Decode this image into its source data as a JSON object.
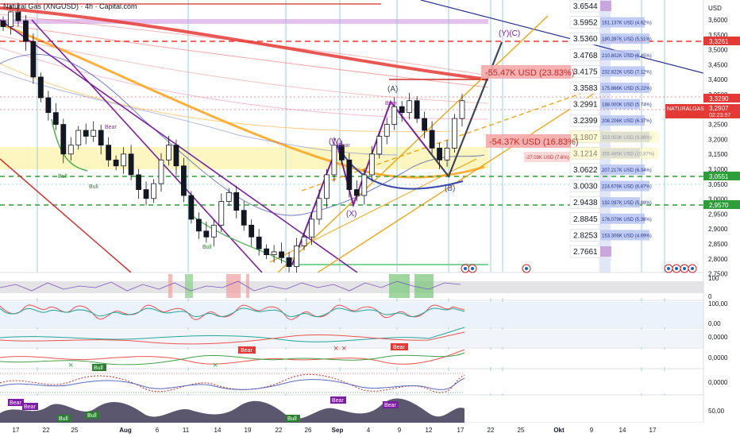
{
  "header": {
    "title": "Natural Gas (XNGUSD) · 4h · Capital.com"
  },
  "axis": {
    "currency": "USD",
    "price_ticks": [
      "3,6000",
      "3,5500",
      "3,5000",
      "3,4500",
      "3,4000",
      "3,3500",
      "3,3000",
      "3,2500",
      "3,2000",
      "3,1500",
      "3,1000",
      "3,0500",
      "3,0000",
      "2,9500",
      "2,9000",
      "2,8500",
      "2,8000",
      "2,7500"
    ],
    "time_ticks": [
      "17",
      "22",
      "25",
      "Aug",
      "6",
      "11",
      "14",
      "19",
      "22",
      "26",
      "Sep",
      "4",
      "9",
      "12",
      "17",
      "22",
      "25",
      "Okt",
      "9",
      "14",
      "17"
    ],
    "indicator_ticks": [
      [
        "100",
        "0"
      ],
      [
        "100,00",
        "0,00"
      ],
      [
        "0,0000"
      ],
      [
        "0,0000"
      ],
      [
        "0,0000"
      ],
      [
        "50,00"
      ]
    ]
  },
  "price_badges": {
    "level_3_3290": "3,3290",
    "symbol": "NATURALGAS",
    "last_price": "3,2907",
    "countdown": "02:23:57",
    "level_3_3261": "3,3261",
    "level_3_0551": "3,0551",
    "level_2_9570": "2,9570"
  },
  "levels": [
    {
      "price": "3.6544",
      "note": ""
    },
    {
      "price": "3.5952",
      "note": "161.137K USD (4.62%)"
    },
    {
      "price": "3.5360",
      "note": "180.397K USD (5.51%)"
    },
    {
      "price": "3.4768",
      "note": "210.802K USD (6.45%)"
    },
    {
      "price": "3.4175",
      "note": "232.822K USD (7.12%)"
    },
    {
      "price": "3.3583",
      "note": "175.866K USD (5.22%)"
    },
    {
      "price": "3.2991",
      "note": "188.000K USD (5.74%)"
    },
    {
      "price": "3.2399",
      "note": "208.206K USD (6.37%)"
    },
    {
      "price": "3.1807",
      "note": "323.053K USD (9.88%)"
    },
    {
      "price": "3.1214",
      "note": "355.485K USD (10.87%)"
    },
    {
      "price": "3.0622",
      "note": "207.217K USD (6.34%)"
    },
    {
      "price": "3.0030",
      "note": "224.676K USD (6.87%)"
    },
    {
      "price": "2.9438",
      "note": "192.097K USD (5.88%)"
    },
    {
      "price": "2.8845",
      "note": "176.079K USD (5.38%)"
    },
    {
      "price": "2.8253",
      "note": "153.306K USD (4.69%)"
    },
    {
      "price": "2.7661",
      "note": ""
    }
  ],
  "callouts": {
    "red_top": "-55.47K USD (23.83%)",
    "red_mid": "-54.37K USD (16.83%)",
    "small_left": "-27.03K USD (7.6%)"
  },
  "wave_labels": {
    "yc": "(Y)(C)",
    "a": "(A)",
    "w": "(W)",
    "x": "(X)",
    "b": "(B)"
  },
  "signals": {
    "bear": "Bear",
    "bull": "Bull"
  },
  "chart_data": {
    "type": "candlestick",
    "title": "Natural Gas (XNGUSD) · 4h · Capital.com",
    "ylabel": "USD",
    "ylim": [
      2.72,
      3.64
    ],
    "series": [
      {
        "name": "Natural Gas (XNGUSD)",
        "values": [
          3.55,
          3.6,
          3.57,
          3.5,
          3.38,
          3.31,
          3.26,
          3.22,
          3.12,
          3.15,
          3.2,
          3.18,
          3.2,
          3.15,
          3.1,
          3.08,
          3.12,
          3.05,
          3.0,
          2.97,
          3.02,
          3.1,
          3.15,
          3.08,
          2.98,
          2.9,
          2.86,
          2.84,
          2.88,
          2.96,
          2.99,
          2.93,
          2.88,
          2.84,
          2.8,
          2.78,
          2.79,
          2.77,
          2.74,
          2.81,
          2.84,
          2.9,
          2.97,
          3.05,
          3.15,
          3.1,
          3.0,
          2.98,
          3.05,
          3.12,
          3.18,
          3.22,
          3.28,
          3.26,
          3.3,
          3.24,
          3.2,
          3.14,
          3.1,
          3.14,
          3.24,
          3.3
        ]
      }
    ]
  }
}
